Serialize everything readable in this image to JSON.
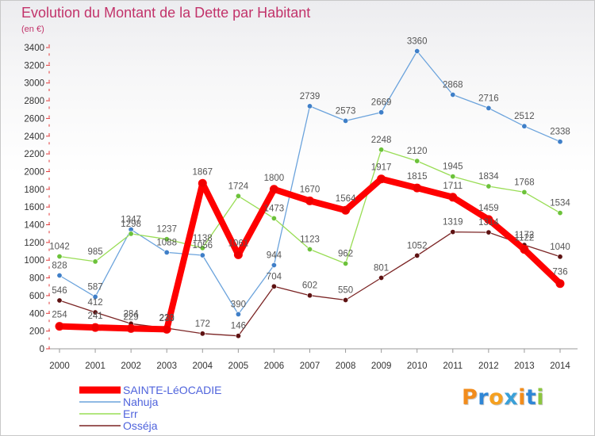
{
  "chart_data": {
    "type": "line",
    "title": "Evolution du Montant de la Dette par Habitant",
    "subtitle": "(en €)",
    "x": [
      "2000",
      "2001",
      "2002",
      "2003",
      "2004",
      "2005",
      "2006",
      "2007",
      "2008",
      "2009",
      "2010",
      "2011",
      "2012",
      "2013",
      "2014"
    ],
    "ylim": [
      0,
      3400
    ],
    "yticks": [
      0,
      200,
      400,
      600,
      800,
      1000,
      1200,
      1400,
      1600,
      1800,
      2000,
      2200,
      2400,
      2600,
      2800,
      3000,
      3200,
      3400
    ],
    "grid": false,
    "legend": "bottom-left",
    "series": [
      {
        "name": "SAINTE-LéOCADIE",
        "color": "#ff0000",
        "marker_color": "#ee0000",
        "values": [
          254,
          241,
          229,
          220,
          1867,
          1061,
          1800,
          1670,
          1564,
          1917,
          1815,
          1711,
          1459,
          1122,
          736
        ]
      },
      {
        "name": "Nahuja",
        "color": "#6ba3dc",
        "marker_color": "#3f7fc8",
        "values": [
          828,
          587,
          1347,
          1088,
          1056,
          390,
          944,
          2739,
          2573,
          2669,
          3360,
          2868,
          2716,
          2512,
          2338
        ]
      },
      {
        "name": "Err",
        "color": "#99dd55",
        "marker_color": "#6cc23a",
        "values": [
          1042,
          985,
          1298,
          1237,
          1138,
          1724,
          1473,
          1123,
          962,
          2248,
          2120,
          1945,
          1834,
          1768,
          1534
        ]
      },
      {
        "name": "Osséja",
        "color": "#7b2424",
        "marker_color": "#5e1212",
        "values": [
          546,
          412,
          284,
          233,
          172,
          146,
          704,
          602,
          550,
          801,
          1052,
          1319,
          1314,
          1172,
          1040
        ]
      }
    ]
  },
  "logo": {
    "text": "Proxiti",
    "colors": [
      "#f28c1c",
      "#2f86d6",
      "#f5a020",
      "#3aa0d8",
      "#f28c1c",
      "#2f86d6",
      "#8cc63f"
    ]
  }
}
